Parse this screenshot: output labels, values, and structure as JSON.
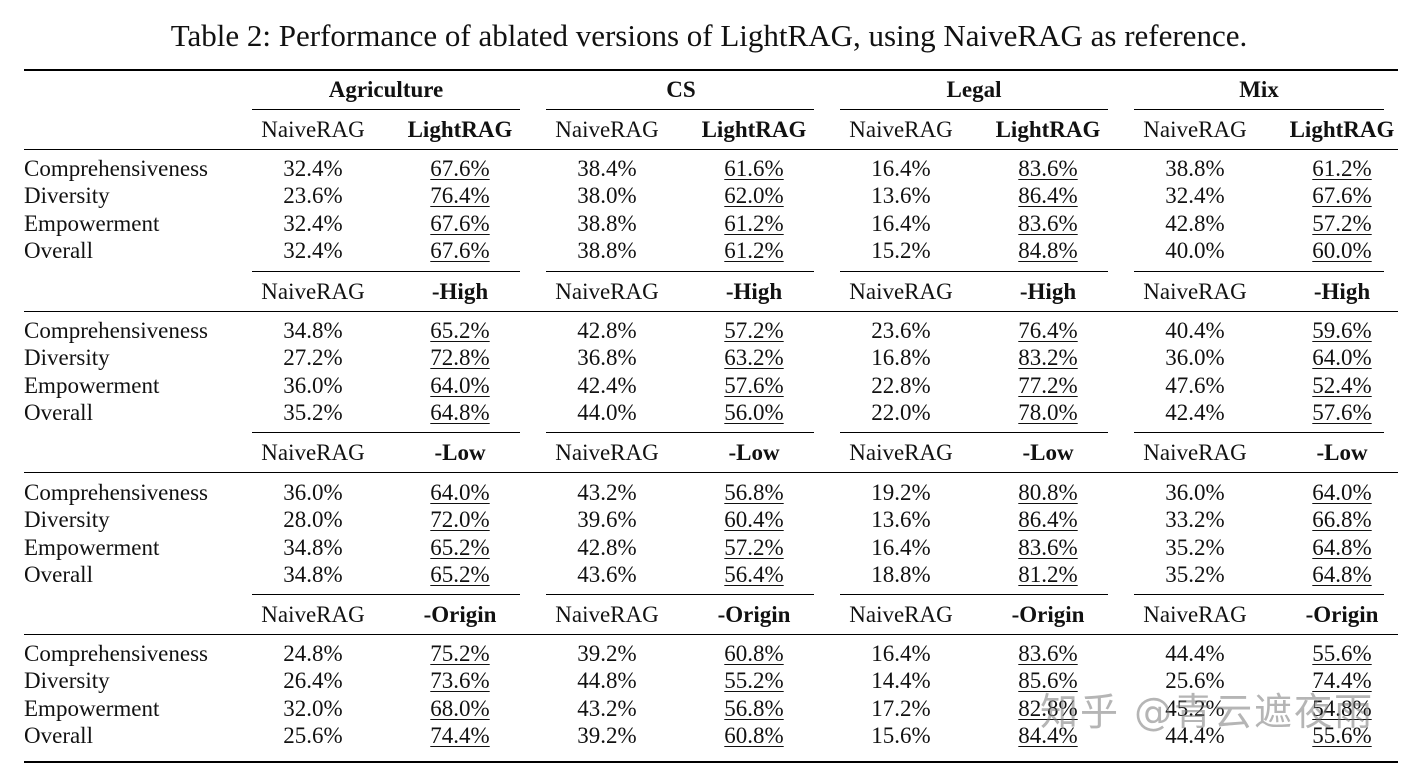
{
  "caption": "Table 2: Performance of ablated versions of LightRAG, using NaiveRAG as reference.",
  "domains": [
    "Agriculture",
    "CS",
    "Legal",
    "Mix"
  ],
  "metrics": [
    "Comprehensiveness",
    "Diversity",
    "Empowerment",
    "Overall"
  ],
  "sections": [
    {
      "left_header": "NaiveRAG",
      "right_header": "LightRAG",
      "rows": [
        [
          "32.4%",
          "67.6%",
          "38.4%",
          "61.6%",
          "16.4%",
          "83.6%",
          "38.8%",
          "61.2%"
        ],
        [
          "23.6%",
          "76.4%",
          "38.0%",
          "62.0%",
          "13.6%",
          "86.4%",
          "32.4%",
          "67.6%"
        ],
        [
          "32.4%",
          "67.6%",
          "38.8%",
          "61.2%",
          "16.4%",
          "83.6%",
          "42.8%",
          "57.2%"
        ],
        [
          "32.4%",
          "67.6%",
          "38.8%",
          "61.2%",
          "15.2%",
          "84.8%",
          "40.0%",
          "60.0%"
        ]
      ]
    },
    {
      "left_header": "NaiveRAG",
      "right_header": "-High",
      "rows": [
        [
          "34.8%",
          "65.2%",
          "42.8%",
          "57.2%",
          "23.6%",
          "76.4%",
          "40.4%",
          "59.6%"
        ],
        [
          "27.2%",
          "72.8%",
          "36.8%",
          "63.2%",
          "16.8%",
          "83.2%",
          "36.0%",
          "64.0%"
        ],
        [
          "36.0%",
          "64.0%",
          "42.4%",
          "57.6%",
          "22.8%",
          "77.2%",
          "47.6%",
          "52.4%"
        ],
        [
          "35.2%",
          "64.8%",
          "44.0%",
          "56.0%",
          "22.0%",
          "78.0%",
          "42.4%",
          "57.6%"
        ]
      ]
    },
    {
      "left_header": "NaiveRAG",
      "right_header": "-Low",
      "rows": [
        [
          "36.0%",
          "64.0%",
          "43.2%",
          "56.8%",
          "19.2%",
          "80.8%",
          "36.0%",
          "64.0%"
        ],
        [
          "28.0%",
          "72.0%",
          "39.6%",
          "60.4%",
          "13.6%",
          "86.4%",
          "33.2%",
          "66.8%"
        ],
        [
          "34.8%",
          "65.2%",
          "42.8%",
          "57.2%",
          "16.4%",
          "83.6%",
          "35.2%",
          "64.8%"
        ],
        [
          "34.8%",
          "65.2%",
          "43.6%",
          "56.4%",
          "18.8%",
          "81.2%",
          "35.2%",
          "64.8%"
        ]
      ]
    },
    {
      "left_header": "NaiveRAG",
      "right_header": "-Origin",
      "rows": [
        [
          "24.8%",
          "75.2%",
          "39.2%",
          "60.8%",
          "16.4%",
          "83.6%",
          "44.4%",
          "55.6%"
        ],
        [
          "26.4%",
          "73.6%",
          "44.8%",
          "55.2%",
          "14.4%",
          "85.6%",
          "25.6%",
          "74.4%"
        ],
        [
          "32.0%",
          "68.0%",
          "43.2%",
          "56.8%",
          "17.2%",
          "82.8%",
          "45.2%",
          "54.8%"
        ],
        [
          "25.6%",
          "74.4%",
          "39.2%",
          "60.8%",
          "15.6%",
          "84.4%",
          "44.4%",
          "55.6%"
        ]
      ]
    }
  ],
  "watermark": "知乎 @青云遮夜雨"
}
